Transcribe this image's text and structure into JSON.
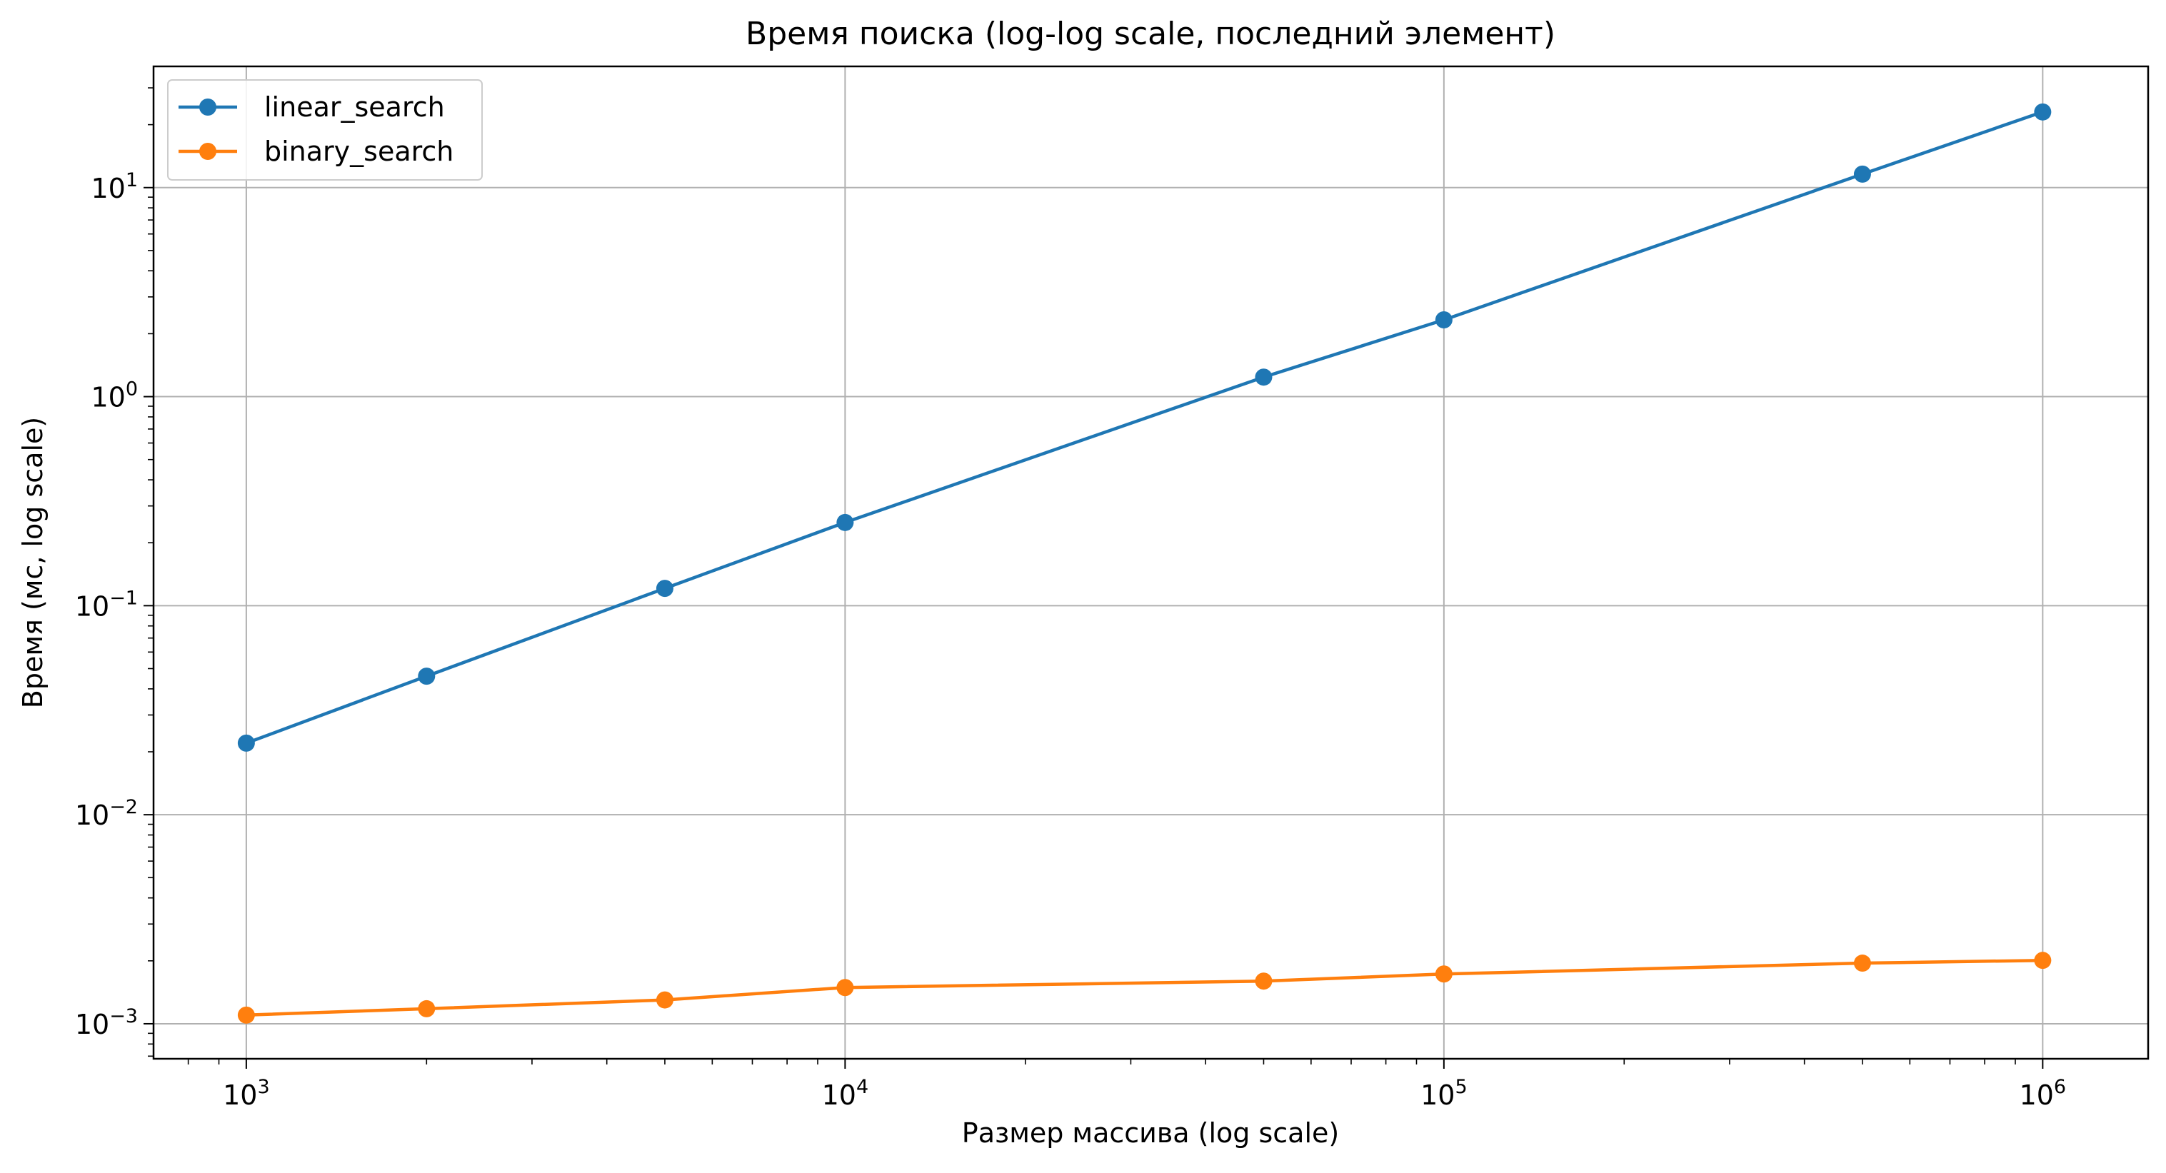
{
  "chart_data": {
    "type": "line",
    "title": "Время поиска (log-log scale, последний элемент)",
    "xlabel": "Размер массива (log scale)",
    "ylabel": "Время (мс, log scale)",
    "x_scale": "log",
    "y_scale": "log",
    "xlim": [
      700,
      1500000
    ],
    "ylim": [
      0.00068,
      38
    ],
    "x_ticks": [
      {
        "value": 1000,
        "base": "10",
        "exp": "3"
      },
      {
        "value": 10000,
        "base": "10",
        "exp": "4"
      },
      {
        "value": 100000,
        "base": "10",
        "exp": "5"
      },
      {
        "value": 1000000,
        "base": "10",
        "exp": "6"
      }
    ],
    "y_ticks": [
      {
        "value": 0.001,
        "base": "10",
        "exp": "−3"
      },
      {
        "value": 0.01,
        "base": "10",
        "exp": "−2"
      },
      {
        "value": 0.1,
        "base": "10",
        "exp": "−1"
      },
      {
        "value": 1,
        "base": "10",
        "exp": "0"
      },
      {
        "value": 10,
        "base": "10",
        "exp": "1"
      }
    ],
    "grid": true,
    "legend_position": "top-left",
    "x": [
      1000,
      2000,
      5000,
      10000,
      50000,
      100000,
      500000,
      1000000
    ],
    "series": [
      {
        "name": "linear_search",
        "color": "#1f77b4",
        "marker": "circle",
        "values": [
          0.022,
          0.046,
          0.121,
          0.25,
          1.24,
          2.33,
          11.6,
          23.0
        ]
      },
      {
        "name": "binary_search",
        "color": "#ff7f0e",
        "marker": "circle",
        "values": [
          0.0011,
          0.00118,
          0.0013,
          0.00149,
          0.0016,
          0.00173,
          0.00195,
          0.00201
        ]
      }
    ]
  }
}
